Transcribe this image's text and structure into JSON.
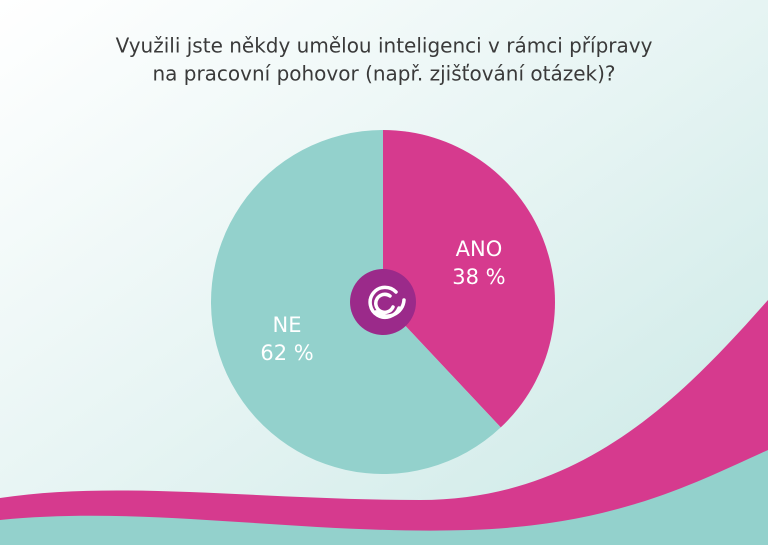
{
  "chart_data": {
    "type": "pie",
    "title": [
      "Využili jste někdy umělou inteligenci v rámci přípravy",
      "na pracovní pohovor (např. zjišťování otázek)?"
    ],
    "categories": [
      "ANO",
      "NE"
    ],
    "values": [
      38,
      62
    ],
    "value_labels": [
      "38 %",
      "62 %"
    ],
    "colors": [
      "#d63a8e",
      "#93d1cc"
    ]
  }
}
